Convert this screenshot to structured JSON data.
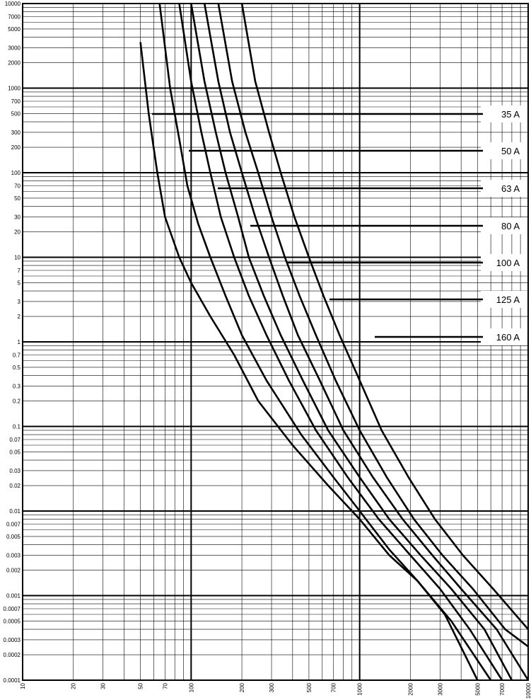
{
  "chart_data": {
    "type": "line",
    "title": "",
    "xlabel": "",
    "ylabel": "",
    "xscale": "log",
    "yscale": "log",
    "xlim": [
      10,
      10000
    ],
    "ylim": [
      0.0001,
      10000
    ],
    "grid": true,
    "x_tick_labels": [
      "10",
      "20",
      "30",
      "50",
      "70",
      "100",
      "200",
      "300",
      "500",
      "700",
      "1000",
      "2000",
      "3000",
      "5000",
      "7000",
      "10000"
    ],
    "y_tick_labels": [
      "0.0001",
      "0.0002",
      "0.0003",
      "0.0005",
      "0.0007",
      "0.001",
      "0.002",
      "0.003",
      "0.005",
      "0.007",
      "0.01",
      "0.02",
      "0.03",
      "0.05",
      "0.07",
      "0.1",
      "0.2",
      "0.3",
      "0.5",
      "0.7",
      "1",
      "2",
      "3",
      "5",
      "7",
      "10",
      "20",
      "30",
      "50",
      "70",
      "100",
      "200",
      "300",
      "500",
      "700",
      "1000",
      "2000",
      "3000",
      "5000",
      "7000",
      "10000"
    ],
    "series": [
      {
        "name": "35 A",
        "x": [
          50,
          56,
          63,
          70,
          85,
          100,
          130,
          180,
          250,
          400,
          650,
          1000,
          1500,
          2200,
          3200,
          5000
        ],
        "y": [
          3500,
          500,
          100,
          30,
          10,
          5,
          2,
          0.7,
          0.2,
          0.06,
          0.02,
          0.008,
          0.003,
          0.0015,
          0.0006,
          0.0001
        ]
      },
      {
        "name": "50 A",
        "x": [
          65,
          75,
          85,
          95,
          110,
          130,
          160,
          200,
          280,
          450,
          700,
          1000,
          1500,
          2200,
          3500,
          6000
        ],
        "y": [
          10000,
          1000,
          250,
          70,
          25,
          10,
          3.5,
          1.2,
          0.35,
          0.08,
          0.025,
          0.01,
          0.0035,
          0.0015,
          0.0005,
          0.0001
        ]
      },
      {
        "name": "63 A",
        "x": [
          85,
          100,
          115,
          130,
          150,
          180,
          220,
          280,
          380,
          550,
          850,
          1300,
          2000,
          3000,
          4500,
          7000
        ],
        "y": [
          10000,
          1200,
          300,
          100,
          30,
          10,
          3.5,
          1.2,
          0.35,
          0.09,
          0.025,
          0.008,
          0.003,
          0.0012,
          0.0004,
          0.0001
        ]
      },
      {
        "name": "80 A",
        "x": [
          100,
          120,
          140,
          160,
          190,
          220,
          270,
          340,
          460,
          650,
          1000,
          1500,
          2300,
          3500,
          5500,
          8000
        ],
        "y": [
          10000,
          1200,
          300,
          100,
          30,
          10,
          3.5,
          1.2,
          0.35,
          0.09,
          0.025,
          0.008,
          0.003,
          0.0012,
          0.0004,
          0.0001
        ]
      },
      {
        "name": "100 A",
        "x": [
          120,
          145,
          170,
          200,
          240,
          290,
          350,
          430,
          580,
          800,
          1200,
          1800,
          2700,
          4000,
          6500,
          10000
        ],
        "y": [
          10000,
          1200,
          300,
          100,
          30,
          10,
          3.5,
          1.2,
          0.35,
          0.09,
          0.025,
          0.008,
          0.003,
          0.0012,
          0.0004,
          0.0001
        ]
      },
      {
        "name": "125 A",
        "x": [
          145,
          175,
          210,
          250,
          300,
          360,
          440,
          550,
          720,
          1000,
          1450,
          2100,
          3100,
          4700,
          7300,
          10000
        ],
        "y": [
          10000,
          1200,
          300,
          100,
          30,
          10,
          3.5,
          1.2,
          0.35,
          0.09,
          0.025,
          0.008,
          0.003,
          0.0012,
          0.0004,
          0.00025
        ]
      },
      {
        "name": "160 A",
        "x": [
          200,
          240,
          290,
          340,
          410,
          500,
          610,
          760,
          1000,
          1350,
          1950,
          2800,
          4100,
          6200,
          10000
        ],
        "y": [
          10000,
          1200,
          300,
          100,
          30,
          10,
          3.5,
          1.2,
          0.35,
          0.09,
          0.025,
          0.008,
          0.003,
          0.0012,
          0.0004
        ]
      }
    ],
    "legend": {
      "placement": "right",
      "labels": [
        "35 A",
        "50 A",
        "63 A",
        "80 A",
        "100 A",
        "125 A",
        "160 A"
      ]
    }
  }
}
